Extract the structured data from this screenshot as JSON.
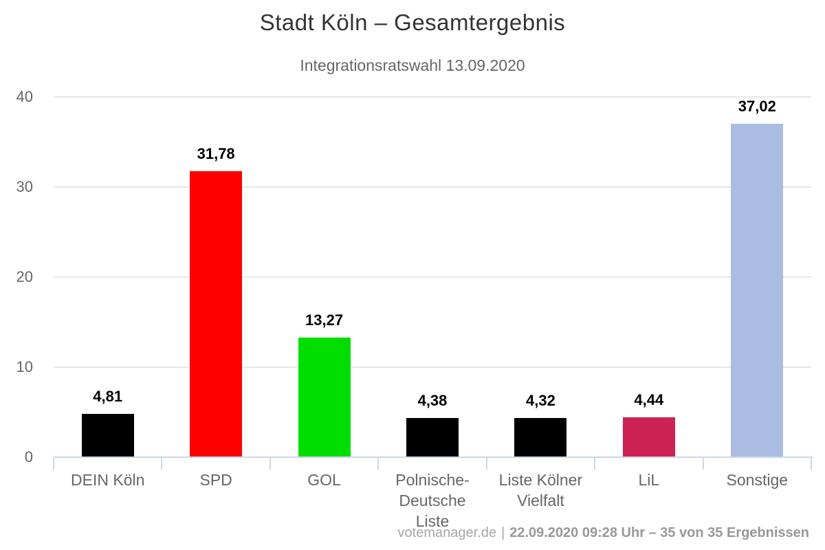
{
  "header": {
    "title": "Stadt Köln – Gesamtergebnis",
    "subtitle": "Integrationsratswahl 13.09.2020"
  },
  "chart_data": {
    "type": "bar",
    "title": "Stadt Köln – Gesamtergebnis",
    "subtitle": "Integrationsratswahl 13.09.2020",
    "categories": [
      "DEIN Köln",
      "SPD",
      "GOL",
      "Polnische-Deutsche Liste",
      "Liste Kölner Vielfalt",
      "LiL",
      "Sonstige"
    ],
    "category_lines": [
      [
        "DEIN Köln"
      ],
      [
        "SPD"
      ],
      [
        "GOL"
      ],
      [
        "Polnische-",
        "Deutsche",
        "Liste"
      ],
      [
        "Liste Kölner",
        "Vielfalt"
      ],
      [
        "LiL"
      ],
      [
        "Sonstige"
      ]
    ],
    "values": [
      4.81,
      31.78,
      13.27,
      4.38,
      4.32,
      4.44,
      37.02
    ],
    "value_labels": [
      "4,81",
      "31,78",
      "13,27",
      "4,38",
      "4,32",
      "4,44",
      "37,02"
    ],
    "bar_colors": [
      "#000000",
      "#ff0000",
      "#00dd00",
      "#000000",
      "#000000",
      "#cb2253",
      "#aabce1"
    ],
    "xlabel": "",
    "ylabel": "",
    "ylim": [
      0,
      40
    ],
    "yticks": [
      0,
      10,
      20,
      30,
      40
    ],
    "ytick_labels": [
      "0",
      "10",
      "20",
      "30",
      "40"
    ],
    "grid": true,
    "legend": false
  },
  "footer": {
    "credits": "votemanager.de",
    "separator": "|",
    "info": "22.09.2020 09:28 Uhr – 35 von 35 Ergebnissen"
  },
  "colors": {
    "title": "#333333",
    "subtitle": "#666666",
    "axis_line": "#ccd6eb",
    "grid_line": "#e7e7e7",
    "tick_label": "#666666",
    "value_label": "#000000",
    "footer_text": "#9e9e9e"
  }
}
